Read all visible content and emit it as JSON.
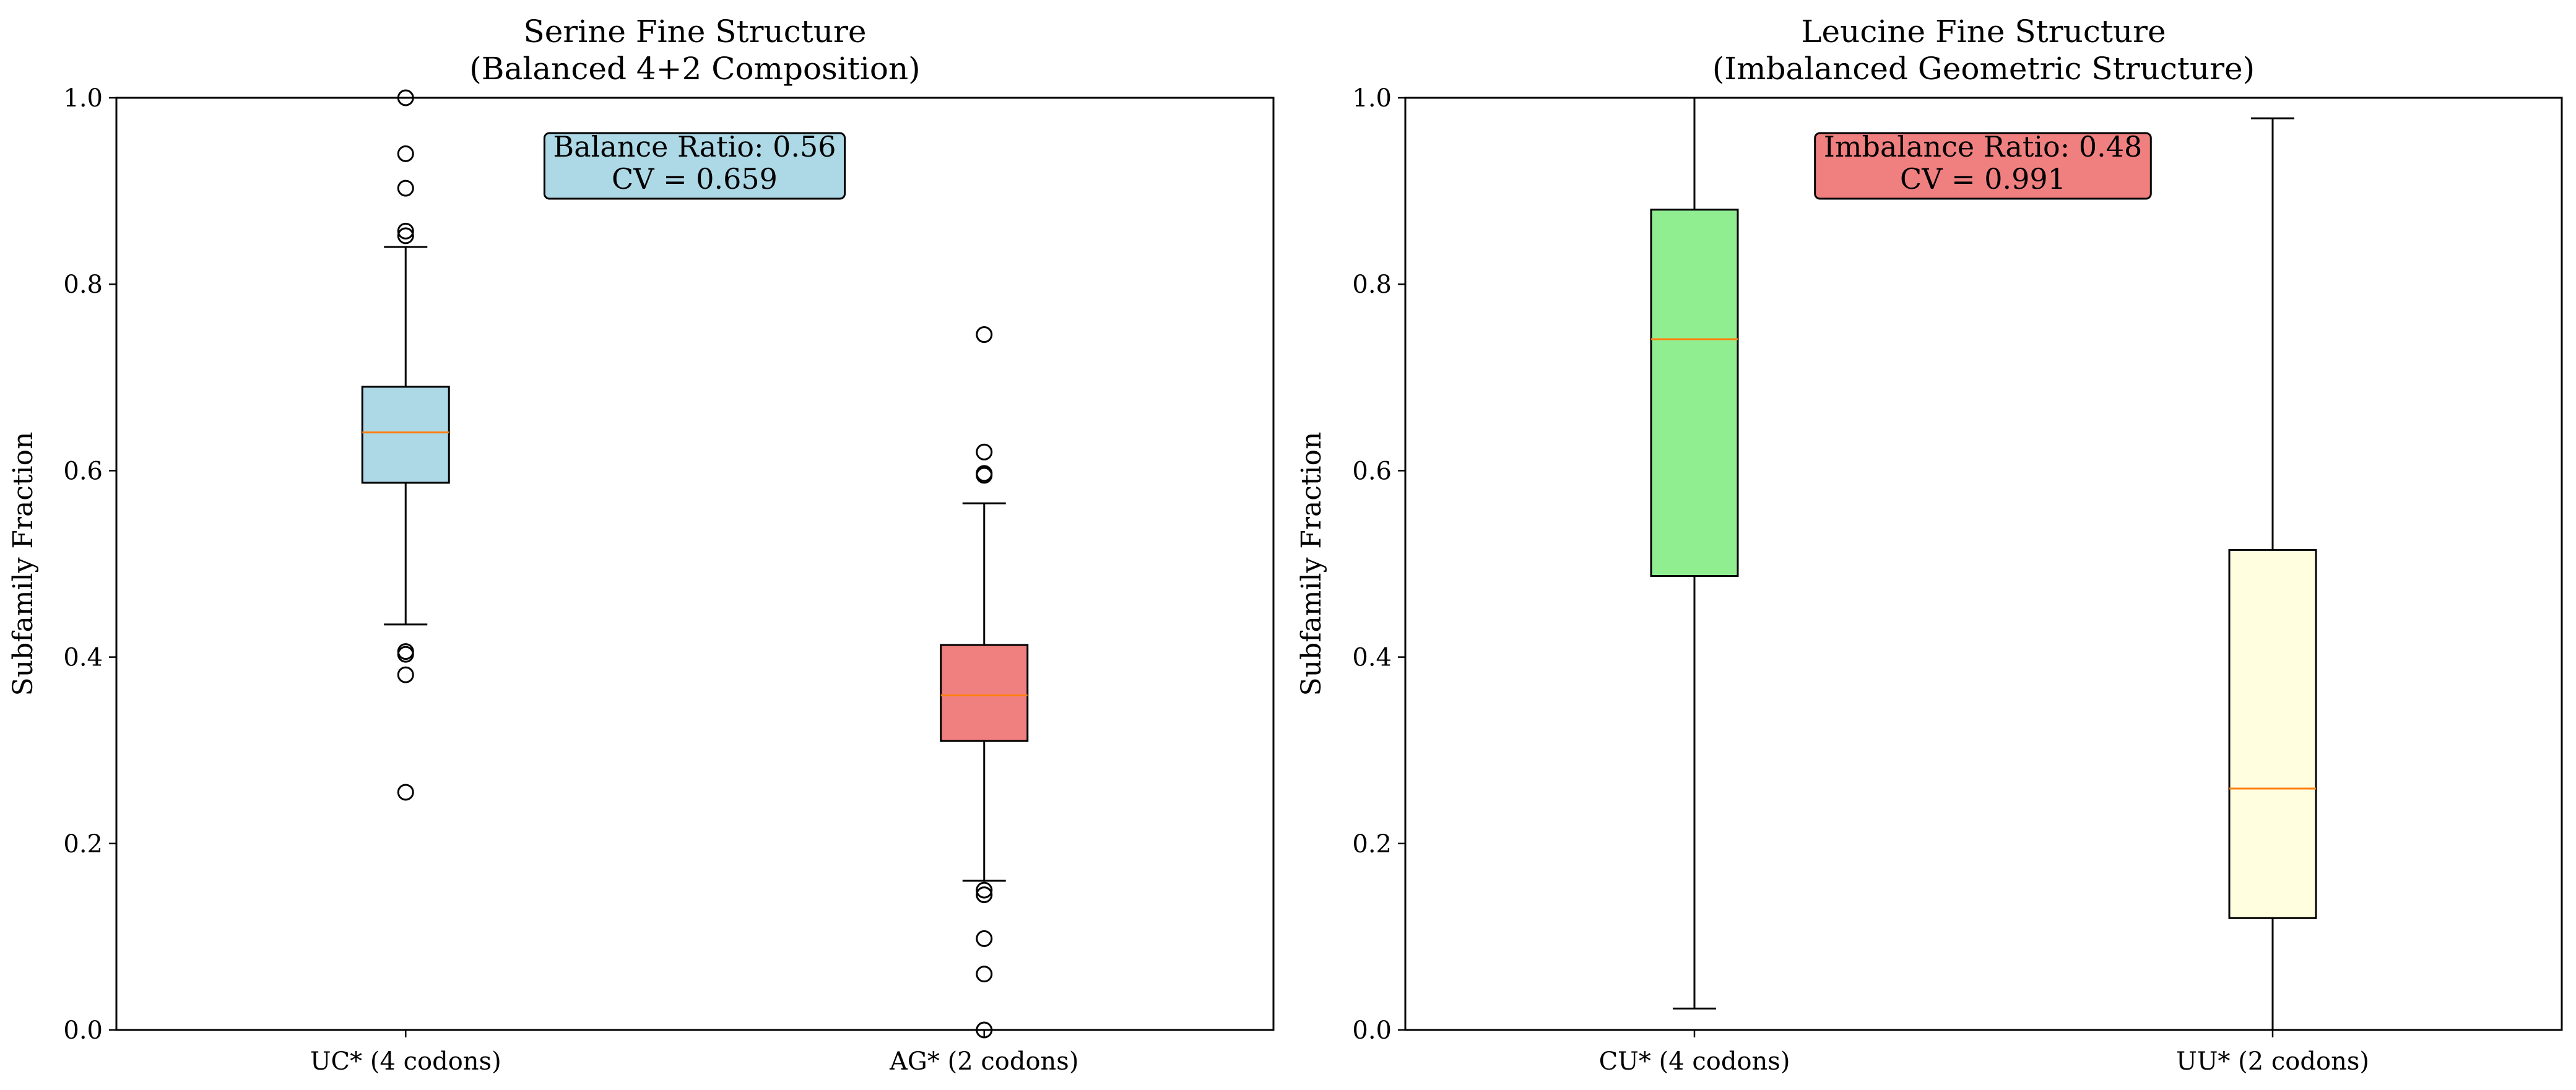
{
  "chart_data": [
    {
      "type": "box",
      "title_line1": "Serine Fine Structure",
      "title_line2": "(Balanced 4+2 Composition)",
      "xlabel": "",
      "ylabel": "Subfamily Fraction",
      "ylim": [
        0.0,
        1.0
      ],
      "yticks": [
        0.0,
        0.2,
        0.4,
        0.6,
        0.8,
        1.0
      ],
      "ytick_labels": [
        "0.0",
        "0.2",
        "0.4",
        "0.6",
        "0.8",
        "1.0"
      ],
      "grid": false,
      "categories": [
        "UC* (4 codons)",
        "AG* (2 codons)"
      ],
      "boxes": [
        {
          "category": "UC* (4 codons)",
          "whisker_low": 0.435,
          "q1": 0.587,
          "median": 0.641,
          "q3": 0.69,
          "whisker_high": 0.84,
          "fill": "#add8e6",
          "outliers": [
            1.0,
            0.94,
            0.903,
            0.857,
            0.852,
            0.406,
            0.403,
            0.381,
            0.255
          ]
        },
        {
          "category": "AG* (2 codons)",
          "whisker_low": 0.16,
          "q1": 0.31,
          "median": 0.359,
          "q3": 0.413,
          "whisker_high": 0.565,
          "fill": "#f08080",
          "outliers": [
            0.746,
            0.62,
            0.597,
            0.595,
            0.15,
            0.145,
            0.098,
            0.06,
            0.0
          ]
        }
      ],
      "annotation": {
        "line1": "Balance Ratio: 0.56",
        "line2": "CV = 0.659",
        "bg": "#add8e6"
      }
    },
    {
      "type": "box",
      "title_line1": "Leucine Fine Structure",
      "title_line2": "(Imbalanced Geometric Structure)",
      "xlabel": "",
      "ylabel": "Subfamily Fraction",
      "ylim": [
        0.0,
        1.0
      ],
      "yticks": [
        0.0,
        0.2,
        0.4,
        0.6,
        0.8,
        1.0
      ],
      "ytick_labels": [
        "0.0",
        "0.2",
        "0.4",
        "0.6",
        "0.8",
        "1.0"
      ],
      "grid": false,
      "categories": [
        "CU* (4 codons)",
        "UU* (2 codons)"
      ],
      "boxes": [
        {
          "category": "CU* (4 codons)",
          "whisker_low": 0.023,
          "q1": 0.487,
          "median": 0.741,
          "q3": 0.88,
          "whisker_high": 1.0,
          "fill": "#90ee90",
          "outliers": []
        },
        {
          "category": "UU* (2 codons)",
          "whisker_low": 0.0,
          "q1": 0.12,
          "median": 0.259,
          "q3": 0.515,
          "whisker_high": 0.978,
          "fill": "#ffffe0",
          "outliers": []
        }
      ],
      "annotation": {
        "line1": "Imbalance Ratio: 0.48",
        "line2": "CV = 0.991",
        "bg": "#f08080"
      }
    }
  ],
  "colors": {
    "median_line": "#ff7f0e",
    "box_edge": "#000000",
    "annotation_edge": "#000000"
  }
}
